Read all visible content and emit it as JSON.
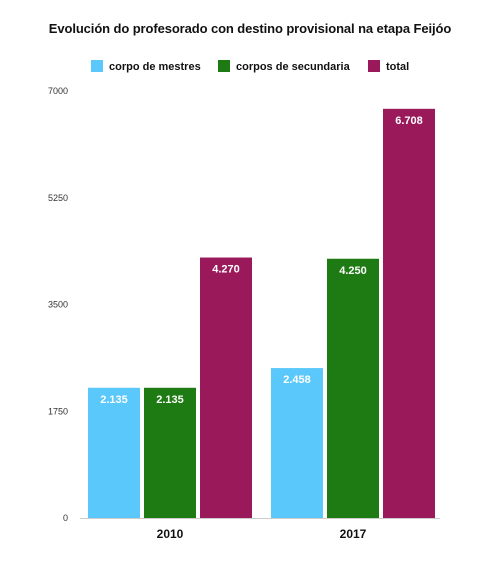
{
  "chart_data": {
    "type": "bar",
    "title": "Evolución do profesorado con destino provisional na etapa Feijóo",
    "categories": [
      "2010",
      "2017"
    ],
    "series": [
      {
        "name": "corpo de mestres",
        "color": "#5ac8fa",
        "values": [
          2135,
          2458
        ],
        "labels": [
          "2.135",
          "2.458"
        ]
      },
      {
        "name": "corpos de secundaria",
        "color": "#1e7a12",
        "values": [
          2135,
          4250
        ],
        "labels": [
          "2.135",
          "4.250"
        ]
      },
      {
        "name": "total",
        "color": "#99195a",
        "values": [
          4270,
          6708
        ],
        "labels": [
          "4.270",
          "6.708"
        ]
      }
    ],
    "yticks": [
      0,
      1750,
      3500,
      5250,
      7000
    ],
    "ylim": [
      0,
      7000
    ],
    "grid": false,
    "legend_position": "top"
  }
}
